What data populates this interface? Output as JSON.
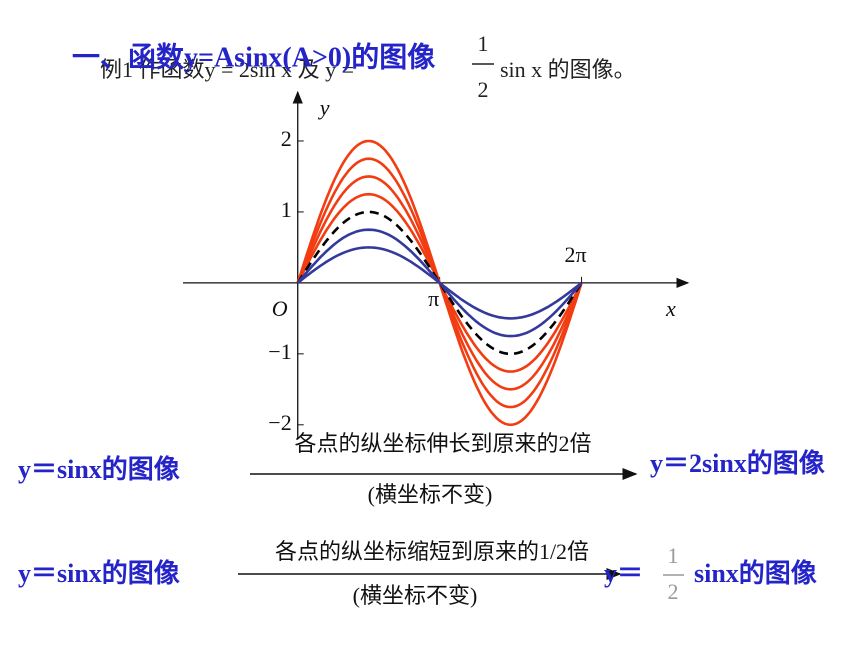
{
  "title": "一、函数y=Asinx(A>0)的图像",
  "example": {
    "prefix": "例1 作函数y = 2sin x 及 y = ",
    "numerator": "1",
    "denominator": "2",
    "suffix": "sin x 的图像。"
  },
  "graph": {
    "xlim": [
      -2.54,
      8.64
    ],
    "ylim": [
      -2.2,
      2.69
    ],
    "x_label": "x",
    "y_label": "y",
    "origin_label": "O",
    "xticks": [
      {
        "value": 3.1416,
        "label": "π"
      },
      {
        "value": 6.2832,
        "label": "2π"
      }
    ],
    "yticks": [
      2,
      1,
      {
        "value": -1,
        "label": "−1"
      },
      {
        "value": -2,
        "label": "−2"
      }
    ],
    "curves": [
      {
        "amplitude": 2,
        "color": "#f23d12"
      },
      {
        "amplitude": 1.75,
        "color": "#f23d12"
      },
      {
        "amplitude": 1.5,
        "color": "#f23d12"
      },
      {
        "amplitude": 1.25,
        "color": "#f23d12"
      },
      {
        "amplitude": 1,
        "color": "#000000",
        "dashed": true
      },
      {
        "amplitude": 0.75,
        "color": "#343a9c"
      },
      {
        "amplitude": 0.5,
        "color": "#343a9c"
      }
    ]
  },
  "transforms": [
    {
      "from": "y＝sinx的图像",
      "above": "各点的纵坐标伸长到原来的2倍",
      "below": "(横坐标不变)",
      "to": "y＝2sinx的图像"
    },
    {
      "from": "y＝sinx的图像",
      "above": "各点的纵坐标缩短到原来的1/2倍",
      "below": "(横坐标不变)",
      "to_prefix": "y＝",
      "to_numerator": "1",
      "to_denominator": "2",
      "to_suffix": "sinx的图像"
    }
  ]
}
